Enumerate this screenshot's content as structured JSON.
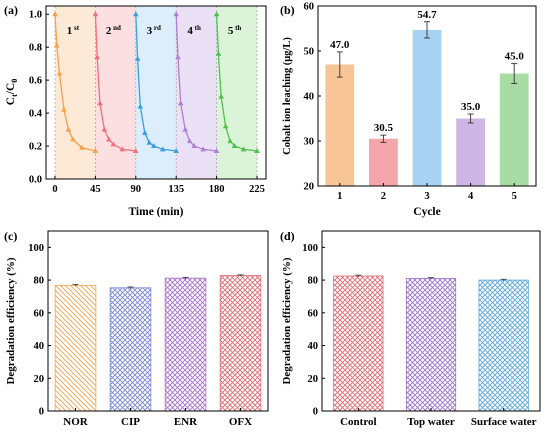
{
  "colors": {
    "cycle": [
      "#f5a04a",
      "#f0707a",
      "#3b9fe0",
      "#b07fd0",
      "#4fc04f"
    ],
    "bars_b": [
      "#f8c597",
      "#f4a6ab",
      "#a9d3f2",
      "#cdb6e6",
      "#a8dca4"
    ],
    "bars_c": [
      "#f6a04c",
      "#7b86d6",
      "#a571cf",
      "#e06b73"
    ],
    "bars_d": [
      "#e06b73",
      "#9b73cf",
      "#5ba6dc"
    ]
  },
  "chart_data": [
    {
      "panel": "(a)",
      "type": "line",
      "xlabel": "Time (min)",
      "ylabel": "Ct/C0",
      "ylabel_main": "C",
      "ylabel_sub1": "t",
      "ylabel_mid": "/C",
      "ylabel_sub2": "0",
      "xlim": [
        -10,
        235
      ],
      "ylim": [
        0.0,
        1.05
      ],
      "xticks": [
        0,
        45,
        90,
        135,
        180,
        225
      ],
      "yticks": [
        0.0,
        0.2,
        0.4,
        0.6,
        0.8,
        1.0
      ],
      "ytick_labels": [
        "0.0",
        "0.2",
        "0.4",
        "0.6",
        "0.8",
        "1.0"
      ],
      "cycle_labels": [
        {
          "num": "1",
          "suffix": "st"
        },
        {
          "num": "2",
          "suffix": "nd"
        },
        {
          "num": "3",
          "suffix": "rd"
        },
        {
          "num": "4",
          "suffix": "th"
        },
        {
          "num": "5",
          "suffix": "th"
        }
      ],
      "series": [
        {
          "x": [
            0,
            2,
            5,
            10,
            15,
            20,
            30,
            45
          ],
          "y": [
            1.0,
            0.81,
            0.64,
            0.42,
            0.3,
            0.24,
            0.19,
            0.17
          ]
        },
        {
          "x": [
            45,
            47,
            50,
            55,
            60,
            65,
            75,
            90
          ],
          "y": [
            1.0,
            0.74,
            0.46,
            0.3,
            0.24,
            0.21,
            0.18,
            0.17
          ]
        },
        {
          "x": [
            90,
            92,
            95,
            100,
            105,
            110,
            120,
            135
          ],
          "y": [
            1.0,
            0.73,
            0.44,
            0.28,
            0.22,
            0.2,
            0.18,
            0.17
          ]
        },
        {
          "x": [
            135,
            137,
            140,
            145,
            150,
            155,
            165,
            180
          ],
          "y": [
            1.0,
            0.74,
            0.46,
            0.3,
            0.23,
            0.2,
            0.18,
            0.17
          ]
        },
        {
          "x": [
            180,
            182,
            185,
            190,
            195,
            200,
            210,
            225
          ],
          "y": [
            1.0,
            0.76,
            0.5,
            0.32,
            0.23,
            0.2,
            0.18,
            0.17
          ]
        }
      ],
      "bands": [
        [
          0,
          45
        ],
        [
          45,
          90
        ],
        [
          90,
          135
        ],
        [
          135,
          180
        ],
        [
          180,
          225
        ]
      ]
    },
    {
      "panel": "(b)",
      "type": "bar",
      "xlabel": "Cycle",
      "ylabel": "Cobalt ion leaching (μg/L)",
      "categories": [
        "1",
        "2",
        "3",
        "4",
        "5"
      ],
      "values": [
        47.0,
        30.5,
        54.7,
        35.0,
        45.0
      ],
      "value_labels": [
        "47.0",
        "30.5",
        "54.7",
        "35.0",
        "45.0"
      ],
      "errors": [
        2.8,
        0.8,
        1.8,
        1.0,
        2.2
      ],
      "ylim": [
        20,
        60
      ],
      "yticks": [
        20,
        30,
        40,
        50,
        60
      ],
      "ytick_labels": [
        "20",
        "30",
        "40",
        "50",
        "60"
      ]
    },
    {
      "panel": "(c)",
      "type": "bar",
      "ylabel": "Degradation efficiency (%)",
      "categories": [
        "NOR",
        "CIP",
        "ENR",
        "OFX"
      ],
      "values": [
        76.8,
        75.3,
        81.2,
        82.8
      ],
      "errors": [
        0.6,
        0.5,
        0.5,
        0.4
      ],
      "ylim": [
        0,
        110
      ],
      "yticks": [
        0,
        20,
        40,
        60,
        80,
        100
      ],
      "ytick_labels": [
        "0",
        "20",
        "40",
        "60",
        "80",
        "100"
      ]
    },
    {
      "panel": "(d)",
      "type": "bar",
      "ylabel": "Degradation efficiency (%)",
      "categories": [
        "Control",
        "Top water",
        "Surface water"
      ],
      "values": [
        82.5,
        81.0,
        80.0
      ],
      "errors": [
        0.5,
        0.5,
        0.5
      ],
      "ylim": [
        0,
        110
      ],
      "yticks": [
        0,
        20,
        40,
        60,
        80,
        100
      ],
      "ytick_labels": [
        "0",
        "20",
        "40",
        "60",
        "80",
        "100"
      ]
    }
  ]
}
